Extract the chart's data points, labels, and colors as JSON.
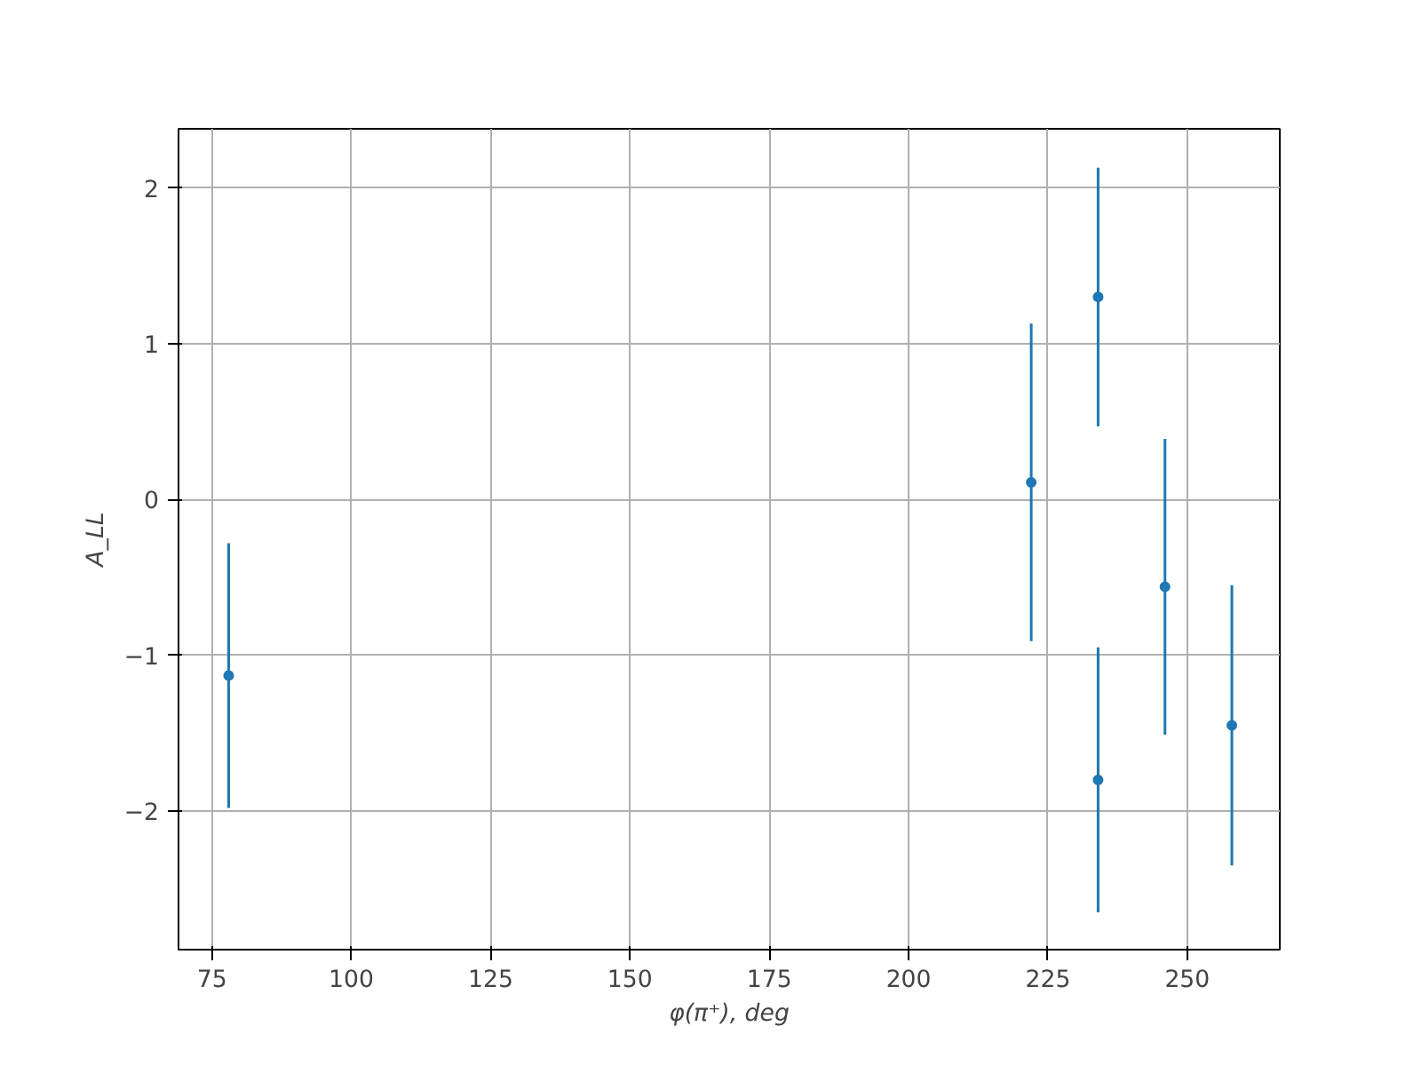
{
  "chart_data": {
    "type": "scatter",
    "xlabel": "φ(π⁺), deg",
    "ylabel": "A_LL",
    "x": [
      78,
      222,
      234,
      234,
      246,
      258
    ],
    "series": [
      {
        "color": "#1f77b4",
        "values": [
          -1.13,
          0.11,
          1.3,
          -1.8,
          -0.56,
          -1.45
        ],
        "errors": [
          0.85,
          1.02,
          0.83,
          0.85,
          0.95,
          0.9
        ]
      }
    ],
    "marker": "circle",
    "grid": true,
    "xlim": [
      69,
      266.6
    ],
    "ylim": [
      -2.89,
      2.38
    ],
    "xticks": [
      75,
      100,
      125,
      150,
      175,
      200,
      225,
      250
    ],
    "yticks": [
      {
        "value": -2,
        "label": "−2"
      },
      {
        "value": -1,
        "label": "−1"
      },
      0,
      1,
      2
    ]
  }
}
